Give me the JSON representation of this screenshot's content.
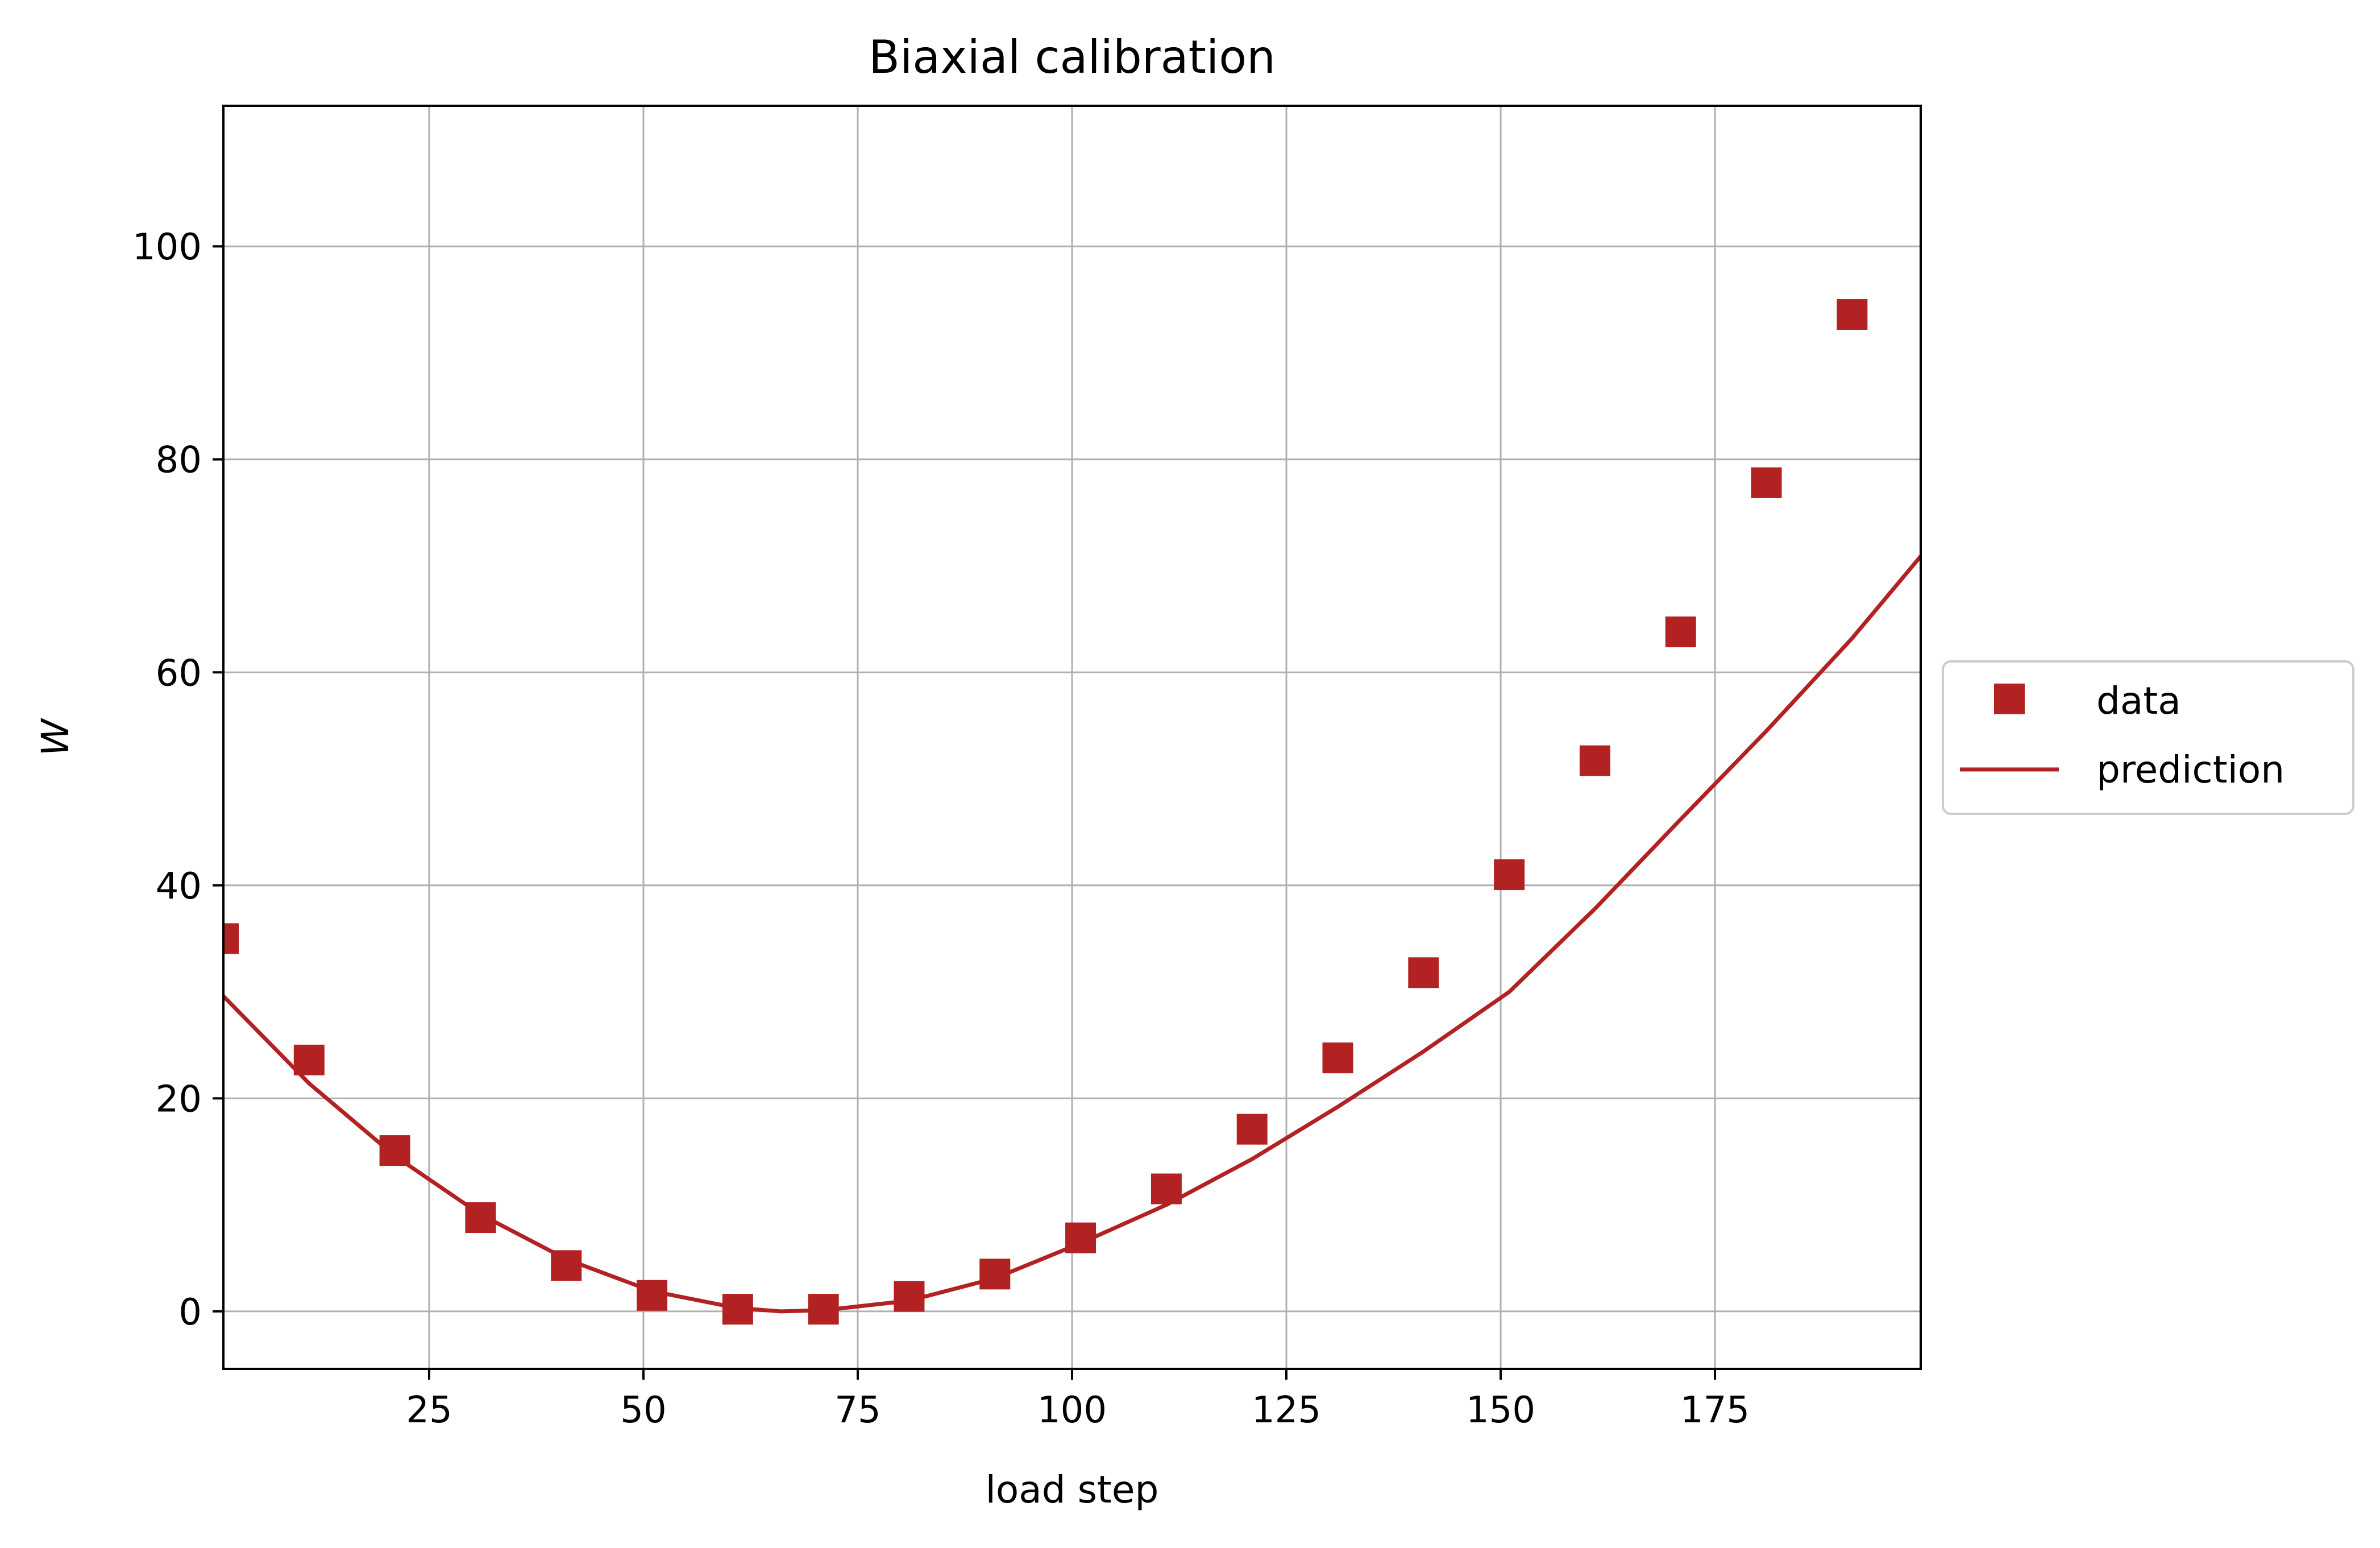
{
  "chart_data": {
    "type": "scatter",
    "title": "Biaxial calibration",
    "xlabel": "load step",
    "ylabel": "W",
    "xlim": [
      1,
      199
    ],
    "ylim": [
      -5.4,
      113.2
    ],
    "grid": true,
    "legend": {
      "placement": "right-outside"
    },
    "xticks": [
      25,
      50,
      75,
      100,
      125,
      150,
      175
    ],
    "xtick_labels": [
      "25",
      "50",
      "75",
      "100",
      "125",
      "150",
      "175"
    ],
    "yticks": [
      0,
      20,
      40,
      60,
      80,
      100
    ],
    "ytick_labels": [
      "0",
      "20",
      "40",
      "60",
      "80",
      "100"
    ],
    "series": [
      {
        "name": "data",
        "kind": "markers",
        "marker": "square",
        "color": "#b22222",
        "x": [
          1,
          11,
          21,
          31,
          41,
          51,
          61,
          71,
          81,
          91,
          101,
          111,
          121,
          131,
          141,
          151,
          161,
          171,
          181,
          191
        ],
        "y": [
          35.0,
          23.6,
          15.1,
          8.8,
          4.3,
          1.5,
          0.2,
          0.2,
          1.4,
          3.5,
          6.9,
          11.5,
          17.1,
          23.8,
          31.8,
          41.0,
          51.7,
          63.8,
          77.8,
          93.6
        ]
      },
      {
        "name": "prediction",
        "kind": "line",
        "color": "#b22222",
        "x": [
          1,
          11,
          21,
          31,
          41,
          51,
          61,
          66,
          71,
          81,
          91,
          101,
          111,
          121,
          131,
          141,
          151,
          161,
          171,
          181,
          191,
          199
        ],
        "y": [
          29.6,
          21.4,
          14.6,
          9.1,
          4.9,
          1.9,
          0.3,
          0.0,
          0.1,
          1.0,
          3.1,
          6.4,
          10.0,
          14.3,
          19.2,
          24.4,
          30.0,
          37.8,
          46.2,
          54.5,
          63.2,
          70.9
        ]
      }
    ]
  }
}
